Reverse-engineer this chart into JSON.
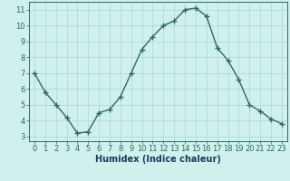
{
  "x": [
    0,
    1,
    2,
    3,
    4,
    5,
    6,
    7,
    8,
    9,
    10,
    11,
    12,
    13,
    14,
    15,
    16,
    17,
    18,
    19,
    20,
    21,
    22,
    23
  ],
  "y": [
    7.0,
    5.8,
    5.0,
    4.2,
    3.2,
    3.3,
    4.5,
    4.7,
    5.5,
    7.0,
    8.5,
    9.3,
    10.0,
    10.3,
    11.0,
    11.1,
    10.6,
    8.6,
    7.8,
    6.6,
    5.0,
    4.6,
    4.1,
    3.8
  ],
  "line_color": "#2e6b5e",
  "marker": "+",
  "markersize": 4,
  "linewidth": 1.0,
  "bg_color": "#cff0ec",
  "grid_color": "#aad8d0",
  "xlabel": "Humidex (Indice chaleur)",
  "xlabel_fontsize": 7,
  "tick_fontsize": 6,
  "ylim": [
    2.7,
    11.5
  ],
  "xlim": [
    -0.5,
    23.5
  ],
  "yticks": [
    3,
    4,
    5,
    6,
    7,
    8,
    9,
    10,
    11
  ],
  "xticks": [
    0,
    1,
    2,
    3,
    4,
    5,
    6,
    7,
    8,
    9,
    10,
    11,
    12,
    13,
    14,
    15,
    16,
    17,
    18,
    19,
    20,
    21,
    22,
    23
  ],
  "tick_color": "#2e6b5e",
  "label_color": "#1a3a5c"
}
